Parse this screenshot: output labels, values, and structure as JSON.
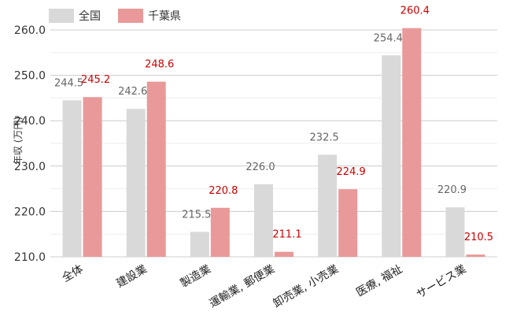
{
  "chart_data": {
    "type": "bar",
    "categories": [
      "全体",
      "建設業",
      "製造業",
      "運輸業, 郵便業",
      "卸売業, 小売業",
      "医療, 福祉",
      "サービス業"
    ],
    "series": [
      {
        "name": "全国",
        "color": "#d9d9d9",
        "label_color": "#666666",
        "values": [
          244.5,
          242.6,
          215.5,
          226.0,
          232.5,
          254.4,
          220.9
        ]
      },
      {
        "name": "千葉県",
        "color": "#e99999",
        "label_color": "#cc0000",
        "values": [
          245.2,
          248.6,
          220.8,
          211.1,
          224.9,
          260.4,
          210.5
        ]
      }
    ],
    "value_labels": {
      "national": [
        "244.5",
        "242.6",
        "215.5",
        "226.0",
        "232.5",
        "254.4",
        "220.9"
      ],
      "chiba": [
        "245.2",
        "248.6",
        "220.8",
        "211.1",
        "224.9",
        "260.4",
        "210.5"
      ]
    },
    "ylabel": "年収 (万円)",
    "ylim": [
      210,
      260
    ],
    "yticks": [
      "210.0",
      "220.0",
      "230.0",
      "240.0",
      "250.0",
      "260.0"
    ],
    "grid": true,
    "legend_position": "top-left"
  }
}
